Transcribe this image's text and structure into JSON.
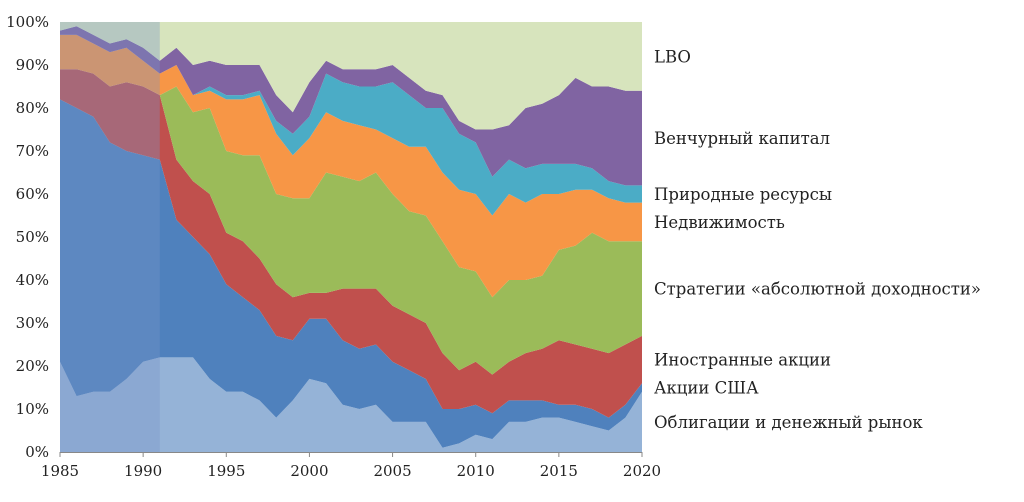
{
  "chart_data": {
    "type": "area",
    "stacked": true,
    "percent": true,
    "x": [
      1985,
      1986,
      1987,
      1988,
      1989,
      1990,
      1991,
      1992,
      1993,
      1994,
      1995,
      1996,
      1997,
      1998,
      1999,
      2000,
      2001,
      2002,
      2003,
      2004,
      2005,
      2006,
      2007,
      2008,
      2009,
      2010,
      2011,
      2012,
      2013,
      2014,
      2015,
      2016,
      2017,
      2018,
      2019,
      2020
    ],
    "xlim": [
      1985,
      2020
    ],
    "ylim": [
      0,
      100
    ],
    "x_ticks": [
      "1985",
      "1990",
      "1995",
      "2000",
      "2005",
      "2010",
      "2015",
      "2020"
    ],
    "y_ticks": [
      "0%",
      "10%",
      "20%",
      "30%",
      "40%",
      "50%",
      "60%",
      "70%",
      "80%",
      "90%",
      "100%"
    ],
    "highlight_range": [
      1985,
      1991
    ],
    "series": [
      {
        "name": "Облигации и денежный рынок",
        "color": "#95b3d7",
        "values": [
          21,
          13,
          14,
          14,
          17,
          21,
          22,
          22,
          22,
          17,
          14,
          14,
          12,
          8,
          12,
          17,
          16,
          11,
          10,
          11,
          7,
          7,
          7,
          1,
          2,
          4,
          3,
          7,
          7,
          8,
          8,
          7,
          6,
          5,
          8,
          14
        ]
      },
      {
        "name": "Акции США",
        "color": "#4f81bd",
        "values": [
          61,
          67,
          64,
          58,
          53,
          48,
          46,
          32,
          28,
          29,
          25,
          22,
          21,
          19,
          14,
          14,
          15,
          15,
          14,
          14,
          14,
          12,
          10,
          9,
          8,
          7,
          6,
          5,
          5,
          4,
          3,
          4,
          4,
          3,
          3,
          2
        ]
      },
      {
        "name": "Иностранные акции",
        "color": "#c0504d",
        "values": [
          7,
          9,
          10,
          13,
          16,
          16,
          15,
          14,
          13,
          14,
          12,
          13,
          12,
          12,
          10,
          6,
          6,
          12,
          14,
          13,
          13,
          13,
          13,
          13,
          9,
          10,
          9,
          9,
          11,
          12,
          15,
          14,
          14,
          15,
          14,
          11
        ]
      },
      {
        "name": "Стратегии «абсолютной доходности»",
        "color": "#9bbb59",
        "values": [
          0,
          0,
          0,
          0,
          0,
          0,
          0,
          17,
          16,
          20,
          19,
          20,
          24,
          21,
          23,
          22,
          28,
          26,
          25,
          27,
          26,
          24,
          25,
          26,
          24,
          21,
          18,
          19,
          17,
          17,
          21,
          23,
          27,
          26,
          24,
          22
        ]
      },
      {
        "name": "Недвижимость",
        "color": "#f79646",
        "values": [
          8,
          8,
          7,
          8,
          8,
          6,
          5,
          5,
          4,
          4,
          12,
          13,
          14,
          14,
          10,
          14,
          14,
          13,
          13,
          10,
          13,
          15,
          16,
          16,
          18,
          18,
          19,
          20,
          18,
          19,
          13,
          13,
          10,
          10,
          9,
          9
        ]
      },
      {
        "name": "Природные ресурсы",
        "color": "#4bacc6",
        "values": [
          0,
          0,
          0,
          0,
          0,
          0,
          0,
          0,
          0,
          1,
          1,
          1,
          1,
          3,
          5,
          5,
          9,
          9,
          9,
          10,
          13,
          12,
          9,
          15,
          13,
          12,
          9,
          8,
          8,
          7,
          7,
          6,
          5,
          4,
          4,
          4
        ]
      },
      {
        "name": "Венчурный капитал",
        "color": "#8064a2",
        "values": [
          1,
          2,
          2,
          2,
          2,
          3,
          3,
          4,
          7,
          6,
          7,
          7,
          6,
          6,
          5,
          8,
          3,
          3,
          4,
          4,
          4,
          4,
          4,
          3,
          3,
          3,
          11,
          8,
          14,
          14,
          16,
          20,
          19,
          22,
          22,
          22
        ]
      },
      {
        "name": "LBO",
        "color": "#d7e4bd",
        "values": [
          2,
          1,
          3,
          5,
          4,
          6,
          9,
          6,
          10,
          9,
          10,
          10,
          10,
          17,
          21,
          14,
          9,
          11,
          11,
          11,
          10,
          13,
          16,
          17,
          23,
          25,
          25,
          24,
          20,
          19,
          17,
          13,
          15,
          15,
          16,
          16
        ]
      }
    ]
  }
}
